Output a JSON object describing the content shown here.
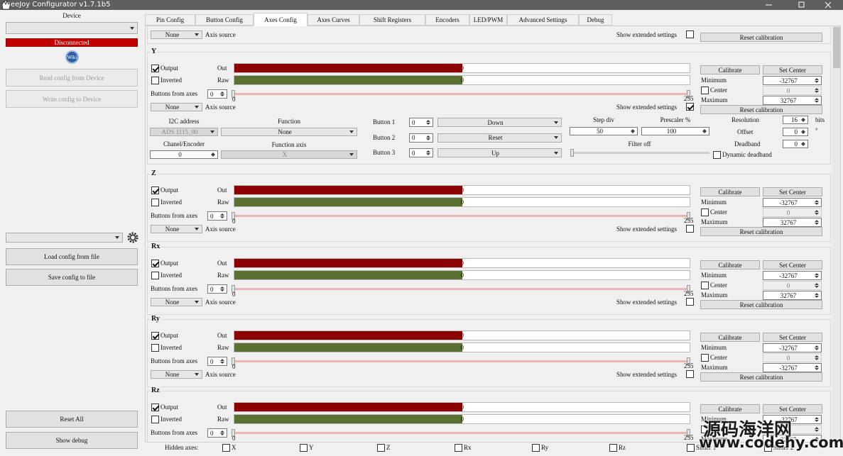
{
  "window": {
    "title": "FreeJoy Configurator v1.7.1b5"
  },
  "sidebar": {
    "device_label": "Device",
    "status": "Disconnected",
    "wiki": "Wiki",
    "read": "Read config from Device",
    "write": "Write config to Device",
    "load": "Load config from file",
    "save": "Save config to file",
    "reset": "Reset All",
    "debug": "Show debug"
  },
  "tabs": [
    "Pin Config",
    "Button Config",
    "Axes Config",
    "Axes Curves",
    "Shift Registers",
    "Encoders",
    "LED/PWM",
    "Advanced Settings",
    "Debug"
  ],
  "active_tab": 2,
  "axis_labels": {
    "output": "Output",
    "out": "Out",
    "inverted": "Inverted",
    "raw": "Raw",
    "buttons_from_axes": "Buttons from axes",
    "axis_source": "Axis source",
    "show_extended": "Show extended settings",
    "calibrate": "Calibrate",
    "set_center": "Set Center",
    "minimum": "Minimum",
    "center": "Center",
    "maximum": "Maximum",
    "reset_calibration": "Reset calibration"
  },
  "top_axis": {
    "source": "None",
    "extended_checked": false
  },
  "axes": [
    {
      "name": "Y",
      "output_checked": true,
      "inverted_checked": false,
      "out_value": 0,
      "raw_value": 0,
      "buttons_from_axes": 0,
      "slider_min": 0,
      "slider_max": 255,
      "source": "None",
      "extended_checked": true,
      "minimum": -32767,
      "center_checked": false,
      "center": 0,
      "maximum": 32767
    },
    {
      "name": "Z",
      "output_checked": true,
      "inverted_checked": false,
      "out_value": 0,
      "raw_value": 0,
      "buttons_from_axes": 0,
      "slider_min": 0,
      "slider_max": 255,
      "source": "None",
      "extended_checked": false,
      "minimum": -32767,
      "center_checked": false,
      "center": 0,
      "maximum": 32767
    },
    {
      "name": "Rx",
      "output_checked": true,
      "inverted_checked": false,
      "out_value": 0,
      "raw_value": 0,
      "buttons_from_axes": 0,
      "slider_min": 0,
      "slider_max": 255,
      "source": "None",
      "extended_checked": false,
      "minimum": -32767,
      "center_checked": false,
      "center": 0,
      "maximum": 32767
    },
    {
      "name": "Ry",
      "output_checked": true,
      "inverted_checked": false,
      "out_value": 0,
      "raw_value": 0,
      "buttons_from_axes": 0,
      "slider_min": 0,
      "slider_max": 255,
      "source": "None",
      "extended_checked": false,
      "minimum": -32767,
      "center_checked": false,
      "center": 0,
      "maximum": -32767
    },
    {
      "name": "Rz",
      "output_checked": true,
      "inverted_checked": false,
      "out_value": 0,
      "raw_value": 0,
      "buttons_from_axes": 0,
      "slider_min": 0,
      "slider_max": 255,
      "source": "None",
      "extended_checked": false,
      "minimum": -32767,
      "center_checked": false,
      "center": 0,
      "maximum": 32767
    }
  ],
  "extended": {
    "i2c_label": "I2C address",
    "i2c": "ADS 1115_00",
    "function_label": "Function",
    "function": "None",
    "channel_label": "Chanel/Encoder",
    "channel": 0,
    "function_axis_label": "Function axis",
    "function_axis": "X",
    "buttons": [
      {
        "label": "Button 1",
        "value": 0,
        "action": "Down"
      },
      {
        "label": "Button 2",
        "value": 0,
        "action": "Reset"
      },
      {
        "label": "Button 3",
        "value": 0,
        "action": "Up"
      }
    ],
    "step_div_label": "Step div",
    "step_div": 50,
    "prescaler_label": "Prescaler %",
    "prescaler": 100,
    "resolution_label": "Resolution",
    "resolution": 16,
    "resolution_unit": "bits",
    "offset_label": "Offset",
    "offset": 0,
    "offset_unit": "°",
    "deadband_label": "Deadband",
    "deadband": 0,
    "filter": "Filter off",
    "dynamic_deadband": "Dynamic deadband"
  },
  "hidden_axes": {
    "label": "Hidden axes:",
    "axes": [
      "X",
      "Y",
      "Z",
      "Rx",
      "Ry",
      "Rz",
      "Slider 1",
      "Slider 2"
    ]
  },
  "watermark": {
    "name": "源码海洋网",
    "url": "www.codehy.com"
  }
}
